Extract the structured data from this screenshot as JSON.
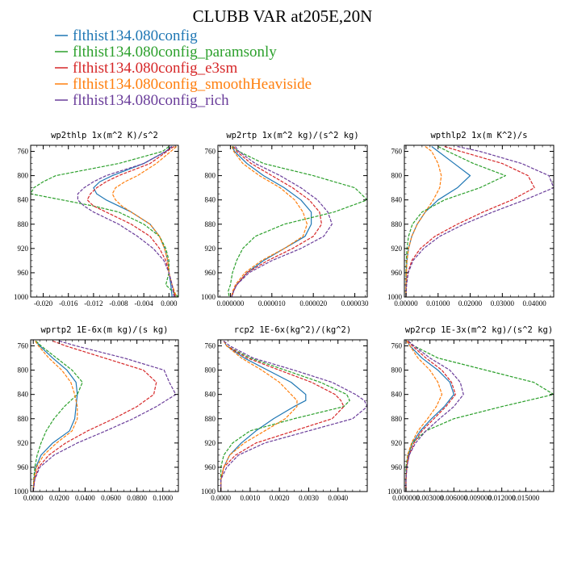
{
  "figure_title": "CLUBB VAR at205E,20N",
  "colors": {
    "blue": "#1f77b4",
    "green": "#2ca02c",
    "red": "#d62728",
    "orange": "#ff7f0e",
    "purple": "#6a3d9a"
  },
  "legend": [
    {
      "label": "flthist134.080config",
      "color": "#1f77b4"
    },
    {
      "label": "flthist134.080config_paramsonly",
      "color": "#2ca02c"
    },
    {
      "label": "flthist134.080config_e3sm",
      "color": "#d62728"
    },
    {
      "label": "flthist134.080config_smoothHeaviside",
      "color": "#ff7f0e"
    },
    {
      "label": "flthist134.080config_rich",
      "color": "#6a3d9a"
    }
  ],
  "chart_data": [
    {
      "type": "line",
      "title": "wp2thlp  1x(m^2 K)/s^2",
      "xlim": [
        -0.022,
        0.0015
      ],
      "ylim": [
        1000,
        750
      ],
      "yticks": [
        760,
        800,
        840,
        880,
        920,
        960,
        1000
      ],
      "xticks": [
        -0.02,
        -0.016,
        -0.012,
        -0.008,
        -0.004,
        0.0
      ],
      "xticklabels": [
        "-0.020",
        "-0.016",
        "-0.012",
        "-0.008",
        "-0.004",
        "0.000"
      ],
      "y": [
        752,
        760,
        780,
        800,
        810,
        820,
        830,
        840,
        850,
        860,
        870,
        880,
        900,
        920,
        940,
        960,
        980,
        1000
      ],
      "series": [
        {
          "color": "#1f77b4",
          "style": "solid",
          "x": [
            0.0005,
            -0.0005,
            -0.004,
            -0.009,
            -0.011,
            -0.012,
            -0.0115,
            -0.01,
            -0.008,
            -0.006,
            -0.0045,
            -0.003,
            -0.0015,
            -0.0007,
            -0.0002,
            0.0,
            0.0003,
            0.0005
          ]
        },
        {
          "color": "#2ca02c",
          "style": "dashed",
          "x": [
            0.0,
            -0.001,
            -0.008,
            -0.018,
            -0.02,
            -0.0215,
            -0.022,
            -0.017,
            -0.012,
            -0.008,
            -0.006,
            -0.004,
            -0.0015,
            -0.0005,
            0.0,
            0.0,
            -0.0005,
            0.0015
          ]
        },
        {
          "color": "#d62728",
          "style": "dashed",
          "x": [
            0.0008,
            -0.0003,
            -0.003,
            -0.008,
            -0.01,
            -0.0115,
            -0.0125,
            -0.013,
            -0.012,
            -0.01,
            -0.008,
            -0.006,
            -0.003,
            -0.0015,
            -0.0005,
            0.0,
            0.0005,
            0.001
          ]
        },
        {
          "color": "#ff7f0e",
          "style": "dashed",
          "x": [
            0.0012,
            0.0003,
            -0.002,
            -0.005,
            -0.007,
            -0.0085,
            -0.009,
            -0.0085,
            -0.0075,
            -0.006,
            -0.0045,
            -0.003,
            -0.0015,
            -0.0007,
            -0.0002,
            0.0,
            0.0005,
            0.0012
          ]
        },
        {
          "color": "#6a3d9a",
          "style": "dashed",
          "x": [
            0.0004,
            -0.0005,
            -0.004,
            -0.01,
            -0.012,
            -0.0135,
            -0.0145,
            -0.0145,
            -0.0135,
            -0.012,
            -0.01,
            -0.008,
            -0.005,
            -0.0025,
            -0.0008,
            0.0,
            0.0005,
            0.0008
          ]
        }
      ]
    },
    {
      "type": "line",
      "title": "wp2rtp  1x(m^2 kg)/(s^2 kg)",
      "xlim": [
        -3e-06,
        3.3e-05
      ],
      "ylim": [
        1000,
        750
      ],
      "yticks": [
        760,
        800,
        840,
        880,
        920,
        960,
        1000
      ],
      "xticks": [
        0.0,
        1e-05,
        2e-05,
        3e-05
      ],
      "xticklabels": [
        "0.000000",
        "0.000010",
        "0.000020",
        "0.000030"
      ],
      "y": [
        752,
        760,
        780,
        800,
        820,
        840,
        860,
        880,
        900,
        920,
        940,
        960,
        980,
        990,
        1000
      ],
      "series": [
        {
          "color": "#1f77b4",
          "style": "solid",
          "x": [
            5e-07,
            1e-06,
            4e-06,
            8e-06,
            1.3e-05,
            1.7e-05,
            1.95e-05,
            1.95e-05,
            1.8e-05,
            1.3e-05,
            8e-06,
            4e-06,
            1.5e-06,
            8e-07,
            3e-07
          ]
        },
        {
          "color": "#2ca02c",
          "style": "dashed",
          "x": [
            5e-07,
            2e-06,
            8e-06,
            2e-05,
            3e-05,
            3.3e-05,
            2.5e-05,
            1.3e-05,
            6e-06,
            3e-06,
            1.5e-06,
            5e-07,
            0.0,
            -5e-07,
            -3e-07
          ]
        },
        {
          "color": "#d62728",
          "style": "dashed",
          "x": [
            8e-07,
            1.5e-06,
            5e-06,
            1e-05,
            1.5e-05,
            1.9e-05,
            2.15e-05,
            2.2e-05,
            2e-05,
            1.5e-05,
            9e-06,
            4e-06,
            1.5e-06,
            8e-07,
            3e-07
          ]
        },
        {
          "color": "#ff7f0e",
          "style": "dashed",
          "x": [
            3e-07,
            8e-07,
            3e-06,
            7e-06,
            1.2e-05,
            1.55e-05,
            1.75e-05,
            1.85e-05,
            1.75e-05,
            1.3e-05,
            7.5e-06,
            3.5e-06,
            1.2e-06,
            6e-07,
            2e-07
          ]
        },
        {
          "color": "#6a3d9a",
          "style": "dashed",
          "x": [
            1.2e-06,
            2e-06,
            6e-06,
            1.2e-05,
            1.7e-05,
            2.1e-05,
            2.35e-05,
            2.45e-05,
            2.25e-05,
            1.7e-05,
            1e-05,
            4.5e-06,
            1.5e-06,
            8e-07,
            3e-07
          ]
        }
      ]
    },
    {
      "type": "line",
      "title": "wpthlp2  1x(m K^2)/s",
      "xlim": [
        -0.0005,
        0.046
      ],
      "ylim": [
        1000,
        750
      ],
      "yticks": [
        760,
        800,
        840,
        880,
        920,
        960,
        1000
      ],
      "xticks": [
        0.0,
        0.01,
        0.02,
        0.03,
        0.04
      ],
      "xticklabels": [
        "0.00000",
        "0.01000",
        "0.02000",
        "0.03000",
        "0.04000"
      ],
      "y": [
        752,
        760,
        780,
        800,
        820,
        840,
        860,
        880,
        900,
        920,
        940,
        960,
        980,
        1000
      ],
      "series": [
        {
          "color": "#1f77b4",
          "style": "solid",
          "x": [
            0.008,
            0.01,
            0.015,
            0.02,
            0.016,
            0.01,
            0.006,
            0.0035,
            0.0018,
            0.0008,
            0.0003,
            0.0001,
            0.0,
            0.0
          ]
        },
        {
          "color": "#2ca02c",
          "style": "dashed",
          "x": [
            0.01,
            0.013,
            0.021,
            0.031,
            0.023,
            0.012,
            0.005,
            0.002,
            0.0008,
            0.0003,
            0.0001,
            0.0,
            0.0,
            0.0
          ]
        },
        {
          "color": "#d62728",
          "style": "dashed",
          "x": [
            0.012,
            0.017,
            0.03,
            0.038,
            0.04,
            0.033,
            0.024,
            0.016,
            0.009,
            0.0045,
            0.0018,
            0.0006,
            0.0001,
            0.0
          ]
        },
        {
          "color": "#ff7f0e",
          "style": "dashed",
          "x": [
            0.006,
            0.008,
            0.01,
            0.011,
            0.0105,
            0.0085,
            0.006,
            0.0035,
            0.0018,
            0.0008,
            0.0003,
            0.0001,
            0.0,
            0.0
          ]
        },
        {
          "color": "#6a3d9a",
          "style": "dashed",
          "x": [
            0.016,
            0.023,
            0.036,
            0.0445,
            0.046,
            0.037,
            0.027,
            0.018,
            0.0105,
            0.0055,
            0.0022,
            0.0007,
            0.0002,
            0.0
          ]
        }
      ]
    },
    {
      "type": "line",
      "title": "wprtp2  1E-6x(m kg)/(s kg)",
      "xlim": [
        -0.002,
        0.112
      ],
      "ylim": [
        1000,
        750
      ],
      "yticks": [
        760,
        800,
        840,
        880,
        920,
        960,
        1000
      ],
      "xticks": [
        0.0,
        0.02,
        0.04,
        0.06,
        0.08,
        0.1
      ],
      "xticklabels": [
        "0.0000",
        "0.0200",
        "0.0400",
        "0.0600",
        "0.0800",
        "0.1000"
      ],
      "y": [
        752,
        760,
        780,
        800,
        820,
        840,
        860,
        880,
        900,
        920,
        940,
        960,
        980,
        1000
      ],
      "series": [
        {
          "color": "#1f77b4",
          "style": "solid",
          "x": [
            0.002,
            0.005,
            0.015,
            0.026,
            0.033,
            0.034,
            0.033,
            0.032,
            0.028,
            0.015,
            0.006,
            0.002,
            0.0005,
            0.0
          ]
        },
        {
          "color": "#2ca02c",
          "style": "dashed",
          "x": [
            0.002,
            0.006,
            0.018,
            0.03,
            0.038,
            0.034,
            0.024,
            0.016,
            0.01,
            0.006,
            0.003,
            0.0012,
            0.0003,
            0.0
          ]
        },
        {
          "color": "#d62728",
          "style": "dashed",
          "x": [
            0.015,
            0.025,
            0.055,
            0.085,
            0.095,
            0.093,
            0.08,
            0.062,
            0.042,
            0.025,
            0.012,
            0.004,
            0.001,
            0.0
          ]
        },
        {
          "color": "#ff7f0e",
          "style": "dashed",
          "x": [
            0.0015,
            0.004,
            0.012,
            0.022,
            0.029,
            0.032,
            0.034,
            0.034,
            0.03,
            0.018,
            0.008,
            0.0025,
            0.0005,
            0.0
          ]
        },
        {
          "color": "#6a3d9a",
          "style": "dashed",
          "x": [
            0.02,
            0.033,
            0.07,
            0.101,
            0.105,
            0.11,
            0.095,
            0.077,
            0.056,
            0.034,
            0.016,
            0.005,
            0.0012,
            0.0
          ]
        }
      ]
    },
    {
      "type": "line",
      "title": "rcp2  1E-6x(kg^2)/(kg^2)",
      "xlim": [
        -0.0001,
        0.005
      ],
      "ylim": [
        1000,
        750
      ],
      "yticks": [
        760,
        800,
        840,
        880,
        920,
        960,
        1000
      ],
      "xticks": [
        0.0,
        0.001,
        0.002,
        0.003,
        0.004
      ],
      "xticklabels": [
        "0.0000",
        "0.0010",
        "0.0020",
        "0.0030",
        "0.0040"
      ],
      "y": [
        752,
        760,
        780,
        800,
        820,
        840,
        850,
        860,
        880,
        900,
        920,
        940,
        960,
        980,
        1000
      ],
      "series": [
        {
          "color": "#1f77b4",
          "style": "solid",
          "x": [
            0.0001,
            0.0002,
            0.0008,
            0.0016,
            0.0024,
            0.0029,
            0.0029,
            0.0025,
            0.0018,
            0.0012,
            0.0007,
            0.0003,
            0.0001,
            0.0,
            0.0
          ]
        },
        {
          "color": "#2ca02c",
          "style": "dashed",
          "x": [
            0.0001,
            0.0002,
            0.001,
            0.0022,
            0.0034,
            0.0043,
            0.0044,
            0.0042,
            0.0025,
            0.001,
            0.0004,
            0.0001,
            0.0,
            0.0,
            0.0
          ]
        },
        {
          "color": "#d62728",
          "style": "dashed",
          "x": [
            0.0001,
            0.0002,
            0.0009,
            0.002,
            0.0031,
            0.0039,
            0.0041,
            0.0042,
            0.0038,
            0.0025,
            0.0012,
            0.0005,
            0.0001,
            0.0,
            0.0
          ]
        },
        {
          "color": "#ff7f0e",
          "style": "dashed",
          "x": [
            0.0001,
            0.0002,
            0.0007,
            0.0014,
            0.002,
            0.0024,
            0.0026,
            0.0026,
            0.0022,
            0.0015,
            0.0008,
            0.0003,
            0.0001,
            0.0,
            0.0
          ]
        },
        {
          "color": "#6a3d9a",
          "style": "dashed",
          "x": [
            0.0001,
            0.0003,
            0.0011,
            0.0025,
            0.0038,
            0.0046,
            0.0049,
            0.005,
            0.0045,
            0.003,
            0.0015,
            0.0006,
            0.0002,
            0.0,
            0.0
          ]
        }
      ]
    },
    {
      "type": "line",
      "title": "wp2rcp  1E-3x(m^2 kg)/(s^2 kg)",
      "xlim": [
        -0.0002,
        0.0185
      ],
      "ylim": [
        1000,
        750
      ],
      "yticks": [
        760,
        800,
        840,
        880,
        920,
        960,
        1000
      ],
      "xticks": [
        0.0,
        0.003,
        0.006,
        0.009,
        0.012,
        0.015
      ],
      "xticklabels": [
        "0.000000",
        "0.003000",
        "0.006000",
        "0.009000",
        "0.012000",
        "0.015000"
      ],
      "y": [
        752,
        760,
        780,
        800,
        820,
        840,
        860,
        880,
        900,
        920,
        940,
        960,
        980,
        1000
      ],
      "series": [
        {
          "color": "#1f77b4",
          "style": "solid",
          "x": [
            0.0001,
            0.0005,
            0.002,
            0.004,
            0.0055,
            0.006,
            0.0048,
            0.0032,
            0.0018,
            0.0008,
            0.0003,
            0.0001,
            0.0,
            0.0
          ]
        },
        {
          "color": "#2ca02c",
          "style": "dashed",
          "x": [
            0.0003,
            0.001,
            0.004,
            0.01,
            0.016,
            0.0185,
            0.012,
            0.006,
            0.0025,
            0.0008,
            0.0002,
            0.0,
            0.0,
            0.0
          ]
        },
        {
          "color": "#d62728",
          "style": "dashed",
          "x": [
            0.0002,
            0.0008,
            0.0025,
            0.0045,
            0.0057,
            0.0062,
            0.005,
            0.0035,
            0.002,
            0.001,
            0.0004,
            0.0001,
            0.0,
            0.0
          ]
        },
        {
          "color": "#ff7f0e",
          "style": "dashed",
          "x": [
            0.0001,
            0.0005,
            0.0015,
            0.003,
            0.004,
            0.0045,
            0.0038,
            0.0027,
            0.0015,
            0.0007,
            0.0002,
            0.0001,
            0.0,
            0.0
          ]
        },
        {
          "color": "#6a3d9a",
          "style": "dashed",
          "x": [
            0.0003,
            0.001,
            0.003,
            0.0055,
            0.0068,
            0.0072,
            0.006,
            0.0042,
            0.0025,
            0.0012,
            0.0004,
            0.0001,
            0.0,
            0.0
          ]
        }
      ]
    }
  ]
}
